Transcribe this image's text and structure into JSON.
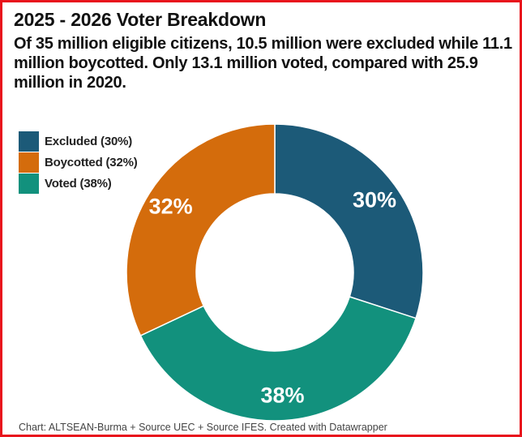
{
  "title": "2025 - 2026 Voter Breakdown",
  "subtitle": "Of 35 million eligible citizens, 10.5 million were excluded while 11.1 million boycotted. Only 13.1 million voted, compared with 25.9 million in 2020.",
  "footer": "Chart: ALTSEAN-Burma + Source UEC + Source IFES. Created with Datawrapper",
  "chart_data": {
    "type": "pie",
    "donut": true,
    "legend_position": "top-left",
    "slices": [
      {
        "legend_label": "Excluded (30%)",
        "value": 30,
        "label": "30%",
        "color": "#1c5a78"
      },
      {
        "legend_label": "Voted (38%)",
        "value": 38,
        "label": "38%",
        "color": "#12917d"
      },
      {
        "legend_label": "Boycotted (32%)",
        "value": 32,
        "label": "32%",
        "color": "#d46c0c"
      }
    ],
    "legend_order": [
      0,
      2,
      1
    ]
  }
}
